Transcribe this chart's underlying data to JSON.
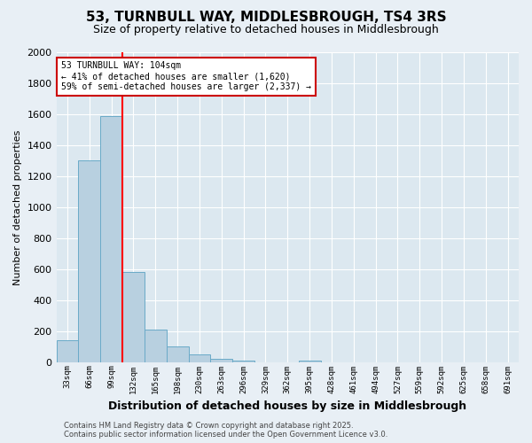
{
  "title": "53, TURNBULL WAY, MIDDLESBROUGH, TS4 3RS",
  "subtitle": "Size of property relative to detached houses in Middlesbrough",
  "xlabel": "Distribution of detached houses by size in Middlesbrough",
  "ylabel": "Number of detached properties",
  "bar_labels": [
    "33sqm",
    "66sqm",
    "99sqm",
    "132sqm",
    "165sqm",
    "198sqm",
    "230sqm",
    "263sqm",
    "296sqm",
    "329sqm",
    "362sqm",
    "395sqm",
    "428sqm",
    "461sqm",
    "494sqm",
    "527sqm",
    "559sqm",
    "592sqm",
    "625sqm",
    "658sqm",
    "691sqm"
  ],
  "bar_values": [
    140,
    1300,
    1590,
    580,
    210,
    100,
    50,
    20,
    10,
    0,
    0,
    10,
    0,
    0,
    0,
    0,
    0,
    0,
    0,
    0,
    0
  ],
  "bar_color": "#b8d0e0",
  "bar_edge_color": "#6aaac8",
  "ylim": [
    0,
    2000
  ],
  "yticks": [
    0,
    200,
    400,
    600,
    800,
    1000,
    1200,
    1400,
    1600,
    1800,
    2000
  ],
  "red_line_index": 2,
  "annotation_title": "53 TURNBULL WAY: 104sqm",
  "annotation_line2": "← 41% of detached houses are smaller (1,620)",
  "annotation_line3": "59% of semi-detached houses are larger (2,337) →",
  "annotation_box_color": "#ffffff",
  "annotation_box_edge": "#cc0000",
  "footer_line1": "Contains HM Land Registry data © Crown copyright and database right 2025.",
  "footer_line2": "Contains public sector information licensed under the Open Government Licence v3.0.",
  "background_color": "#e8eff5",
  "plot_background": "#dce8f0",
  "grid_color": "#ffffff",
  "title_fontsize": 11,
  "subtitle_fontsize": 9
}
